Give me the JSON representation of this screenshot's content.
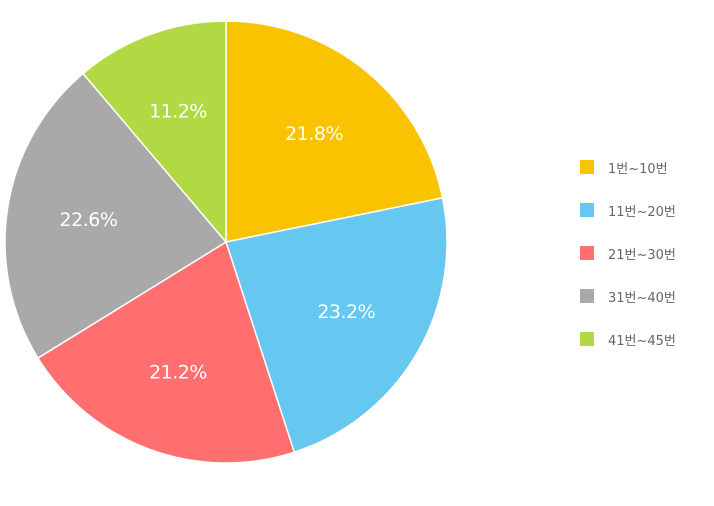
{
  "chart_data": {
    "type": "pie",
    "title": "",
    "legend_position": "right",
    "slices": [
      {
        "label": "1번~10번",
        "value": 21.8,
        "value_label": "21.8%",
        "color": "#f9c300"
      },
      {
        "label": "11번~20번",
        "value": 23.2,
        "value_label": "23.2%",
        "color": "#66c7f1"
      },
      {
        "label": "21번~30번",
        "value": 21.2,
        "value_label": "21.2%",
        "color": "#ff6f6f"
      },
      {
        "label": "31번~40번",
        "value": 22.6,
        "value_label": "22.6%",
        "color": "#a9a9a9"
      },
      {
        "label": "41번~45번",
        "value": 11.2,
        "value_label": "11.2%",
        "color": "#b0d943"
      }
    ]
  }
}
